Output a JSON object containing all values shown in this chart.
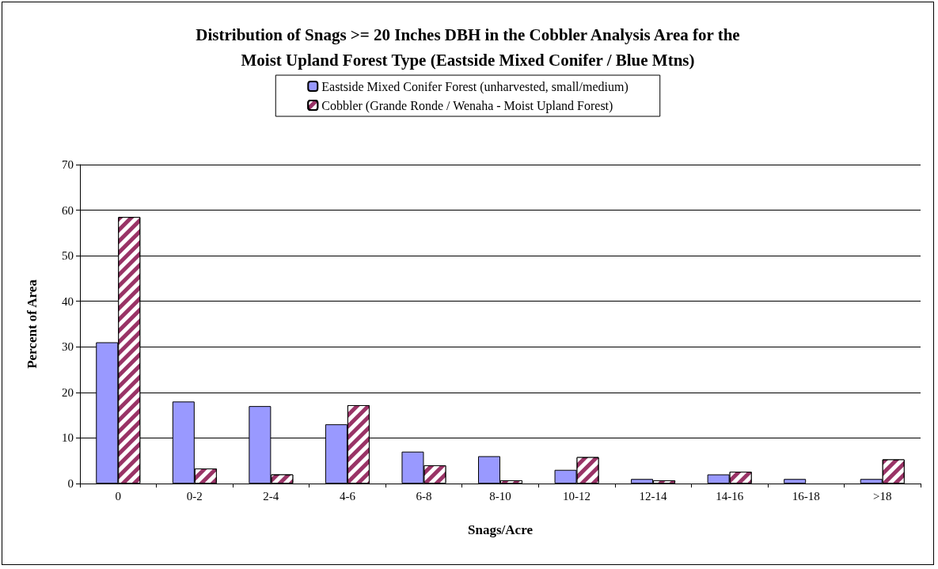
{
  "chart_data": {
    "type": "bar",
    "title": "Distribution of Snags >= 20 Inches DBH in the Cobbler Analysis Area for the\nMoist Upland Forest Type (Eastside Mixed Conifer / Blue Mtns)",
    "xlabel": "Snags/Acre",
    "ylabel": "Percent of Area",
    "categories": [
      "0",
      "0-2",
      "2-4",
      "4-6",
      "6-8",
      "8-10",
      "10-12",
      "12-14",
      "14-16",
      "16-18",
      ">18"
    ],
    "series": [
      {
        "name": "Eastside Mixed Conifer Forest (unharvested, small/medium)",
        "color": "#9999ff",
        "values": [
          31,
          18,
          17,
          13,
          7,
          6,
          3,
          1,
          2,
          1,
          1
        ]
      },
      {
        "name": "Cobbler (Grande Ronde / Wenaha - Moist Upland Forest)",
        "color": "#993366",
        "values": [
          58.5,
          3.3,
          2,
          17.2,
          4,
          0.7,
          5.8,
          0.7,
          2.6,
          0,
          5.3
        ]
      }
    ],
    "ylim": [
      0,
      70
    ],
    "yticks": [
      0,
      10,
      20,
      30,
      40,
      50,
      60,
      70
    ],
    "grid": "y",
    "legend": "top"
  }
}
